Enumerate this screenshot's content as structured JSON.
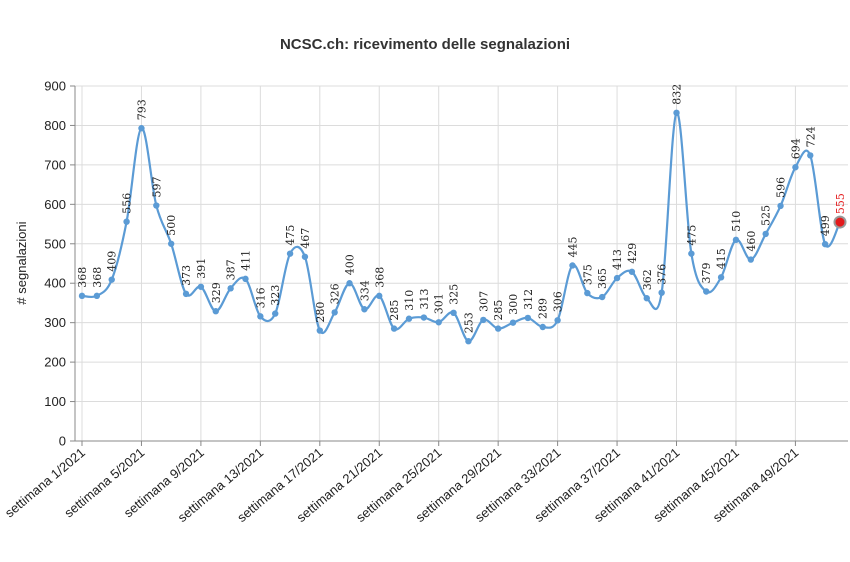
{
  "chart_data": {
    "type": "line",
    "title": "NCSC.ch: ricevimento delle segnalazioni",
    "xlabel": "",
    "ylabel": "# segnalazioni",
    "ylim": [
      0,
      900
    ],
    "yticks": [
      0,
      100,
      200,
      300,
      400,
      500,
      600,
      700,
      800,
      900
    ],
    "grid": true,
    "x_tick_labels": [
      "settimana 1/2021",
      "settimana 5/2021",
      "settimana 9/2021",
      "settimana 13/2021",
      "settimana 17/2021",
      "settimana 21/2021",
      "settimana 25/2021",
      "settimana 29/2021",
      "settimana 33/2021",
      "settimana 37/2021",
      "settimana 41/2021",
      "settimana 45/2021",
      "settimana 49/2021"
    ],
    "x": [
      1,
      2,
      3,
      4,
      5,
      6,
      7,
      8,
      9,
      10,
      11,
      12,
      13,
      14,
      15,
      16,
      17,
      18,
      19,
      20,
      21,
      22,
      23,
      24,
      25,
      26,
      27,
      28,
      29,
      30,
      31,
      32,
      33,
      34,
      35,
      36,
      37,
      38,
      39,
      40,
      41,
      42,
      43,
      44,
      45,
      46,
      47,
      48,
      49,
      50,
      51,
      52
    ],
    "values": [
      368,
      368,
      409,
      556,
      793,
      597,
      500,
      373,
      391,
      329,
      387,
      411,
      316,
      323,
      475,
      467,
      280,
      326,
      400,
      334,
      368,
      285,
      310,
      313,
      301,
      325,
      253,
      307,
      285,
      300,
      312,
      289,
      306,
      445,
      375,
      365,
      413,
      429,
      362,
      376,
      832,
      475,
      379,
      415,
      510,
      460,
      525,
      596,
      694,
      724,
      499,
      555
    ],
    "highlight_index": 51,
    "colors": {
      "line": "#5b9bd5",
      "highlight": "#e31a1c",
      "highlight_label": "#e31a1c"
    }
  }
}
